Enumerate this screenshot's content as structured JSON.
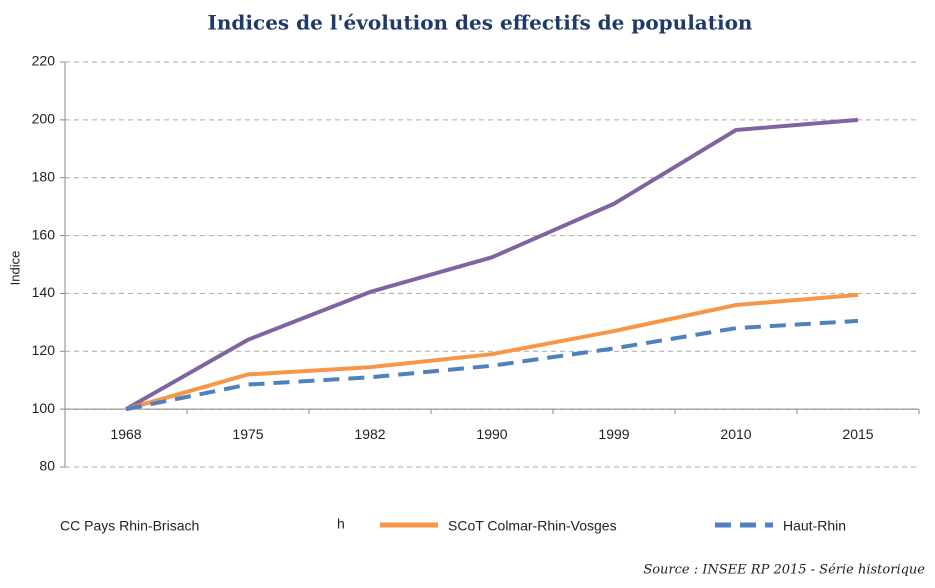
{
  "chart_data": {
    "type": "line",
    "title": "Indices de l'évolution des effectifs de population",
    "y_label": "Indice",
    "source": "Source : INSEE RP 2015 - Série historique",
    "annotations": [
      "h"
    ],
    "categories": [
      "1968",
      "1975",
      "1982",
      "1990",
      "1999",
      "2010",
      "2015"
    ],
    "series": [
      {
        "name": "CC Pays Rhin-Brisach",
        "color": "#8064a2",
        "dash": false,
        "legend_swatch": false,
        "values": [
          100,
          124,
          140.5,
          152.5,
          171,
          196.5,
          200
        ]
      },
      {
        "name": "SCoT Colmar-Rhin-Vosges",
        "color": "#f79646",
        "dash": false,
        "legend_swatch": true,
        "values": [
          100,
          112,
          114.5,
          119,
          127,
          136,
          139.5
        ]
      },
      {
        "name": "Haut-Rhin",
        "color": "#4f81bd",
        "dash": true,
        "legend_swatch": true,
        "values": [
          100,
          108.5,
          111,
          115,
          121,
          128,
          130.5
        ]
      }
    ],
    "ylim": [
      80,
      220
    ],
    "yticks": [
      80,
      100,
      120,
      140,
      160,
      180,
      200,
      220
    ],
    "x_axis_at": 100,
    "grid": true
  }
}
